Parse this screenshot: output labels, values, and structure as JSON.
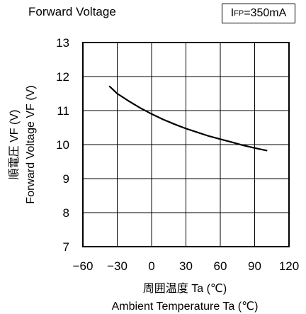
{
  "header": {
    "title": "Forward Voltage",
    "condition_prefix": "I",
    "condition_sub": "FP",
    "condition_value": "=350mA"
  },
  "chart_data": {
    "type": "line",
    "title": "Forward Voltage",
    "xlabel_jp": "周囲温度 Ta (℃)",
    "xlabel": "Ambient Temperature Ta (℃)",
    "ylabel_jp": "順電圧 VF (V)",
    "ylabel": "Forward Voltage VF (V)",
    "xlim": [
      -60,
      120
    ],
    "ylim": [
      7,
      13
    ],
    "xticks": [
      -60,
      -30,
      0,
      30,
      60,
      90,
      120
    ],
    "yticks": [
      7,
      8,
      9,
      10,
      11,
      12,
      13
    ],
    "grid": true,
    "line_color": "#000000",
    "series": [
      {
        "x": [
          -37,
          -30,
          -20,
          -10,
          0,
          10,
          20,
          30,
          40,
          50,
          60,
          70,
          80,
          90,
          101
        ],
        "y": [
          11.72,
          11.5,
          11.28,
          11.08,
          10.9,
          10.74,
          10.6,
          10.47,
          10.36,
          10.25,
          10.16,
          10.07,
          9.98,
          9.9,
          9.82
        ]
      }
    ]
  }
}
